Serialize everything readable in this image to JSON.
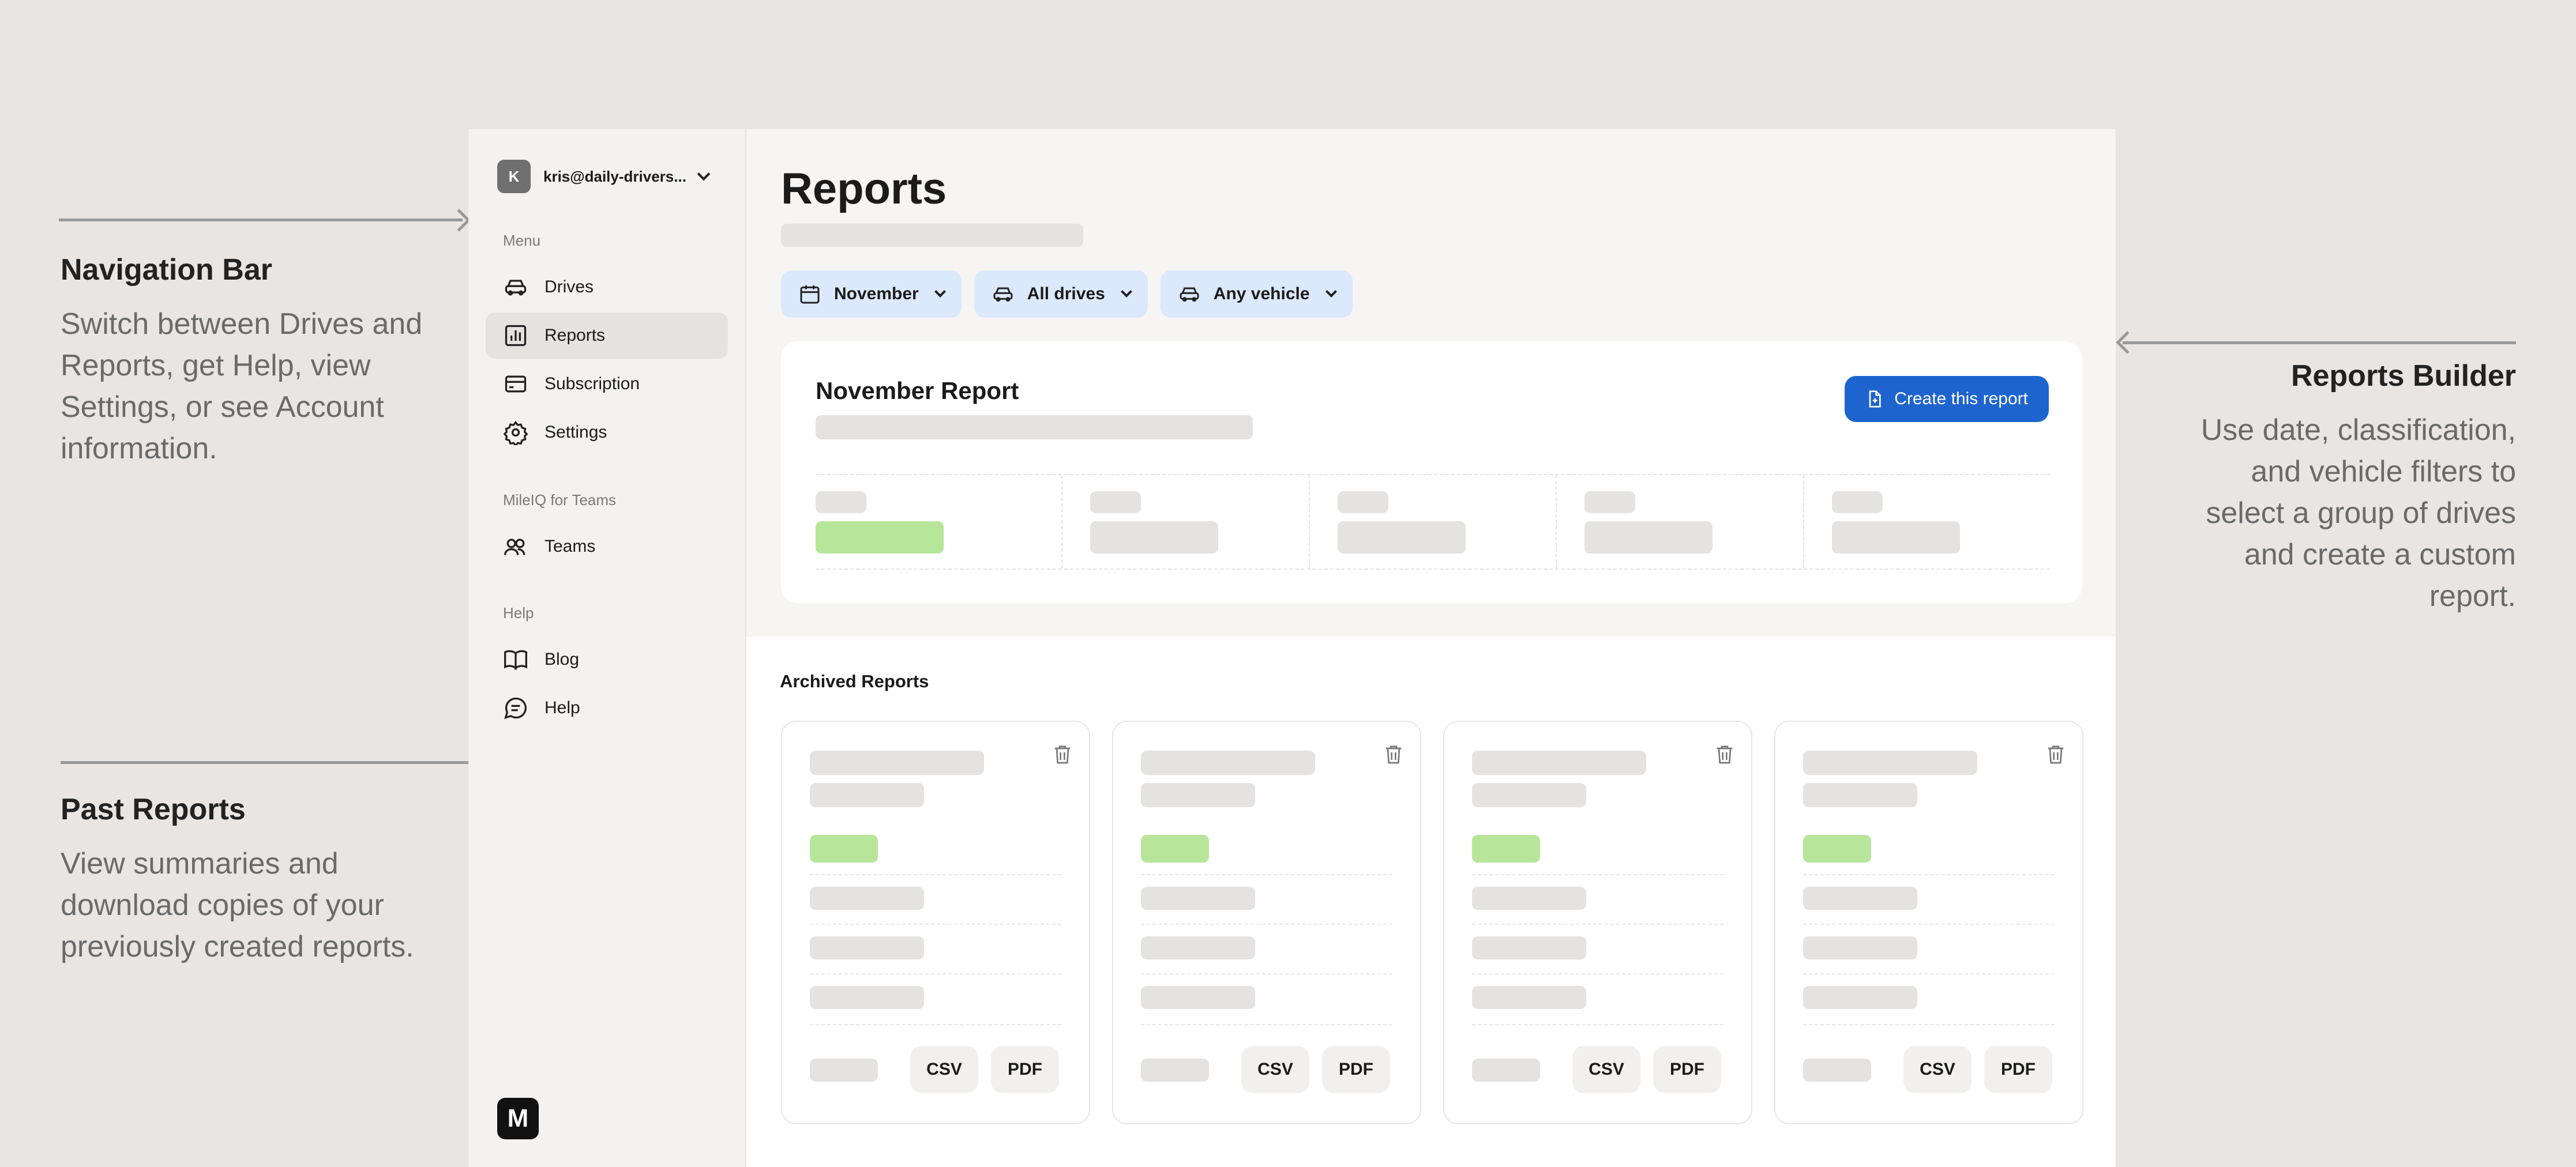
{
  "annotations": {
    "nav": {
      "title": "Navigation Bar",
      "desc": "Switch between Drives and Reports, get Help, view Settings, or see Account information."
    },
    "builder": {
      "title": "Reports Builder",
      "desc": "Use date, classification, and vehicle filters to select a group of drives and create a custom report."
    },
    "past": {
      "title": "Past Reports",
      "desc": "View summaries and download copies of your previously created reports."
    }
  },
  "sidebar": {
    "account": {
      "initial": "K",
      "email": "kris@daily-drivers..."
    },
    "sections": [
      "Menu",
      "MileIQ for Teams",
      "Help"
    ],
    "items": [
      {
        "label": "Drives",
        "icon": "car-icon"
      },
      {
        "label": "Reports",
        "icon": "bar-chart-icon",
        "active": true
      },
      {
        "label": "Subscription",
        "icon": "credit-card-icon"
      },
      {
        "label": "Settings",
        "icon": "gear-icon"
      },
      {
        "label": "Teams",
        "icon": "people-icon"
      },
      {
        "label": "Blog",
        "icon": "book-icon"
      },
      {
        "label": "Help",
        "icon": "chat-icon"
      }
    ],
    "logo": "M"
  },
  "main": {
    "title": "Reports",
    "filters": [
      {
        "label": "November",
        "icon": "calendar-icon"
      },
      {
        "label": "All drives",
        "icon": "car-icon"
      },
      {
        "label": "Any vehicle",
        "icon": "car-icon"
      }
    ],
    "report": {
      "title": "November Report",
      "create_label": "Create this report"
    },
    "archived": {
      "title": "Archived Reports",
      "csv_label": "CSV",
      "pdf_label": "PDF"
    }
  },
  "colors": {
    "accent": "#1e64cf",
    "chip_bg": "#dce8fb",
    "placeholder_green": "#b7e59a",
    "background": "#e8e5e2"
  }
}
